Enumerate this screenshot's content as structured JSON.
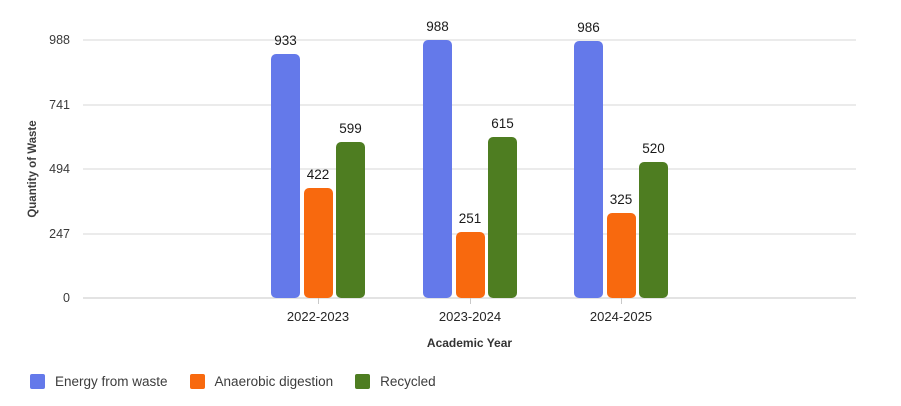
{
  "chart_data": {
    "type": "bar",
    "title": "",
    "categories": [
      "2022-2023",
      "2023-2024",
      "2024-2025"
    ],
    "series": [
      {
        "name": "Energy from waste",
        "color": "#6479ea",
        "values": [
          933,
          988,
          986
        ]
      },
      {
        "name": "Anaerobic digestion",
        "color": "#f8690e",
        "values": [
          422,
          251,
          325
        ]
      },
      {
        "name": "Recycled",
        "color": "#4e7d21",
        "values": [
          599,
          615,
          520
        ]
      }
    ],
    "xlabel": "Academic Year",
    "ylabel": "Quantity of Waste",
    "yticks": [
      0,
      247,
      494,
      741,
      988
    ],
    "ylim": [
      0,
      988
    ],
    "grid": true,
    "legend_position": "bottom-left",
    "value_labels": true
  },
  "colors": {
    "background": "#ffffff",
    "gridline": "#ebebeb",
    "axis_line": "#e3e3e3",
    "tick_mark": "#c9c9c9",
    "tick_text": "#3a3a3a",
    "value_label_text": "#1a1a1a",
    "legend_text": "#3c3c3c"
  }
}
